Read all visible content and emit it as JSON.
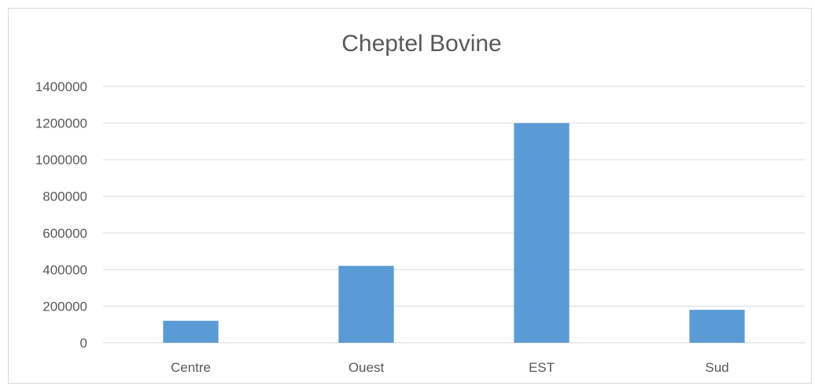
{
  "chart_data": {
    "type": "bar",
    "title": "Cheptel Bovine",
    "categories": [
      "Centre",
      "Ouest",
      "EST",
      "Sud"
    ],
    "values": [
      120000,
      420000,
      1200000,
      180000
    ],
    "xlabel": "",
    "ylabel": "",
    "ylim": [
      0,
      1400000
    ],
    "yticks": [
      "0",
      "200000",
      "400000",
      "600000",
      "800000",
      "1000000",
      "1200000",
      "1400000"
    ],
    "grid": true,
    "legend": "none",
    "bar_color": "#5b9bd5"
  }
}
